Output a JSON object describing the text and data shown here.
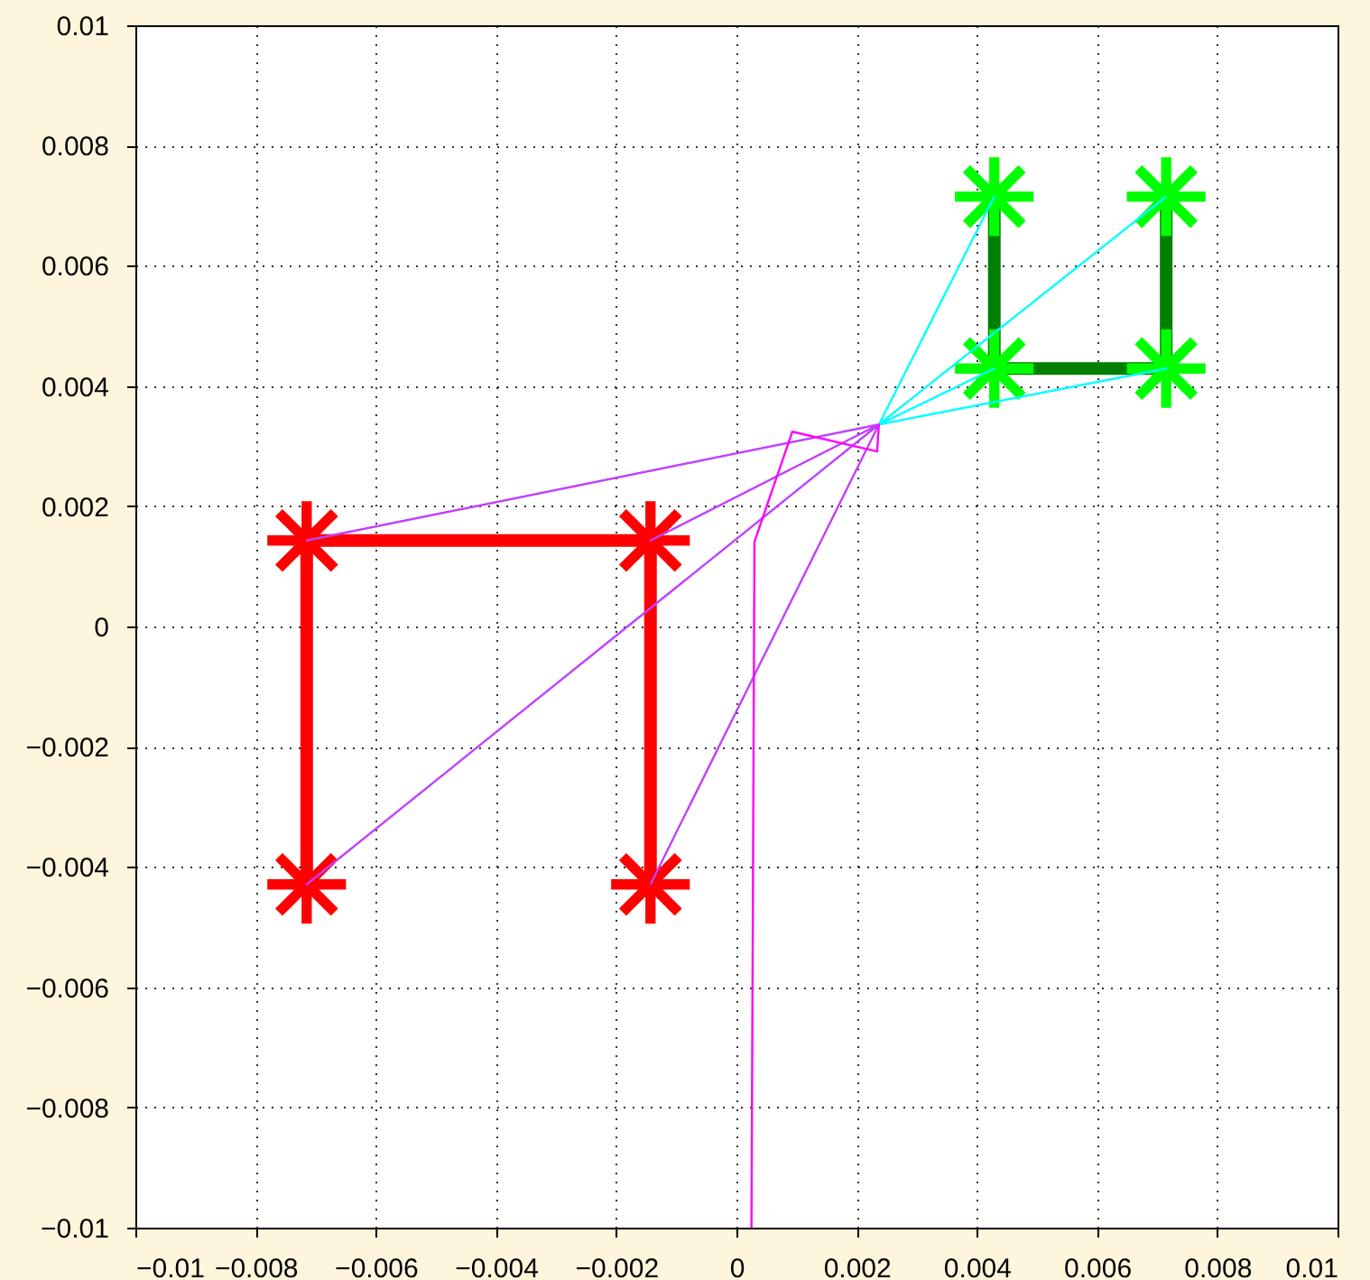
{
  "chart_data": {
    "type": "line",
    "xlim": [
      -0.01,
      0.01
    ],
    "ylim": [
      -0.01,
      0.01
    ],
    "xticks": [
      -0.01,
      -0.008,
      -0.006,
      -0.004,
      -0.002,
      0,
      0.002,
      0.004,
      0.006,
      0.008,
      0.01
    ],
    "yticks": [
      -0.01,
      -0.008,
      -0.006,
      -0.004,
      -0.002,
      0,
      0.002,
      0.004,
      0.006,
      0.008,
      0.01
    ],
    "grid": true,
    "series": [
      {
        "color": "#ff0000",
        "marker": "cross",
        "x": [
          -0.00715,
          -0.00715,
          -0.00143,
          -0.00143
        ],
        "values": [
          -0.00429,
          0.00143,
          0.00143,
          -0.00429
        ]
      },
      {
        "color": "#007f00",
        "marker": "cross",
        "colors": [
          "#00ff00",
          "#00ff00",
          "#00ff00",
          "#00ff00"
        ],
        "x": [
          0.00429,
          0.00429,
          0.00715,
          0.00715
        ],
        "values": [
          0.00715,
          0.00429,
          0.00429,
          0.00715
        ]
      },
      {
        "color": "#00ffff",
        "x": [
          0.00237,
          0.00429,
          0.00237,
          0.00429,
          0.00237,
          0.00715,
          0.00237,
          0.00715
        ],
        "values": [
          0.00336,
          0.00715,
          0.00336,
          0.00429,
          0.00336,
          0.00429,
          0.00336,
          0.00715
        ]
      },
      {
        "color": "#c040ff",
        "x": [
          0.00237,
          -0.00715,
          0.00237,
          -0.00715,
          0.00237,
          -0.00143,
          0.00237,
          -0.00143
        ],
        "values": [
          0.00336,
          0.00143,
          0.00336,
          -0.00429,
          0.00336,
          0.00143,
          0.00336,
          -0.00429
        ]
      },
      {
        "color": "#ff00ff",
        "x": [
          0.00025,
          0.0003,
          0.00093,
          0.00234,
          0.00237
        ],
        "values": [
          -0.01,
          0.00141,
          0.00324,
          0.00291,
          0.00336
        ]
      }
    ]
  }
}
